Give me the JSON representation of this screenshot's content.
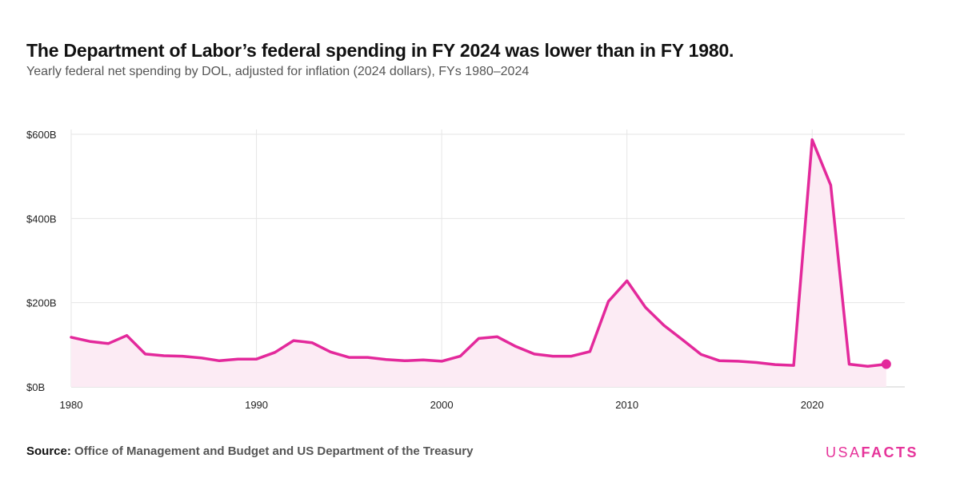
{
  "header": {
    "title": "The Department of Labor’s federal spending in FY 2024 was lower than in FY 1980.",
    "subtitle": "Yearly federal net spending by DOL, adjusted for inflation (2024 dollars), FYs 1980–2024"
  },
  "footer": {
    "source_label": "Source:",
    "source_text": "Office of Management and Budget and US Department of the Treasury",
    "logo_usa": "USA",
    "logo_facts": "FACTS"
  },
  "colors": {
    "line": "#e3299b",
    "area": "#fcebf4",
    "grid": "#e6e6e6"
  },
  "chart_data": {
    "type": "area",
    "x_label_format": "year",
    "x_ticks": [
      1980,
      1990,
      2000,
      2010,
      2020
    ],
    "y_ticks": [
      0,
      200,
      400,
      600
    ],
    "y_tick_labels": [
      "$0B",
      "$200B",
      "$400B",
      "$600B"
    ],
    "xlim": [
      1980,
      2025
    ],
    "ylim": [
      0,
      600
    ],
    "unit": "billions of 2024 dollars",
    "grid": true,
    "legend": "none",
    "end_marker": true,
    "x": [
      1980,
      1981,
      1982,
      1983,
      1984,
      1985,
      1986,
      1987,
      1988,
      1989,
      1990,
      1991,
      1992,
      1993,
      1994,
      1995,
      1996,
      1997,
      1998,
      1999,
      2000,
      2001,
      2002,
      2003,
      2004,
      2005,
      2006,
      2007,
      2008,
      2009,
      2010,
      2011,
      2012,
      2013,
      2014,
      2015,
      2016,
      2017,
      2018,
      2019,
      2020,
      2021,
      2022,
      2023,
      2024
    ],
    "values": [
      118,
      108,
      103,
      122,
      78,
      74,
      73,
      69,
      62,
      66,
      66,
      82,
      110,
      105,
      83,
      70,
      70,
      65,
      62,
      64,
      61,
      73,
      115,
      119,
      96,
      78,
      73,
      73,
      84,
      203,
      252,
      189,
      146,
      112,
      77,
      62,
      61,
      58,
      53,
      51,
      587,
      479,
      54,
      49,
      54
    ]
  }
}
